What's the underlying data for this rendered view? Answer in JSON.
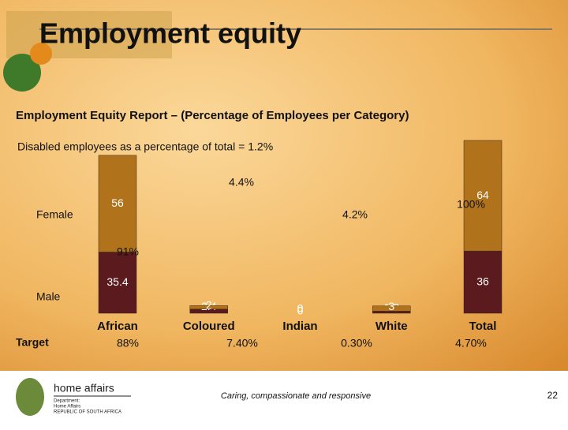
{
  "header": {
    "title": "Employment equity"
  },
  "chart_data": {
    "type": "stacked-bar",
    "title": "Employment Equity Report – (Percentage of Employees per Category)",
    "subtitle": "Disabled employees as a percentage of total = 1.2%",
    "categories": [
      "African",
      "Coloured",
      "Indian",
      "White",
      "Total"
    ],
    "series": [
      {
        "name": "Male",
        "color": "#5a1a1e",
        "values": [
          35.4,
          2.4,
          0,
          1.2,
          36
        ]
      },
      {
        "name": "Female",
        "color": "#b0731c",
        "values": [
          56,
          2,
          0,
          3,
          64
        ]
      }
    ],
    "ylim": [
      0,
      100
    ],
    "annotations": [
      "4.4%",
      "4.2%",
      "100%",
      "91%"
    ],
    "target": {
      "label": "Target",
      "values": [
        "88%",
        "7.40%",
        "0.30%",
        "4.70%"
      ]
    }
  },
  "footer": {
    "logo_title": "home affairs",
    "logo_line1": "Department:",
    "logo_line2": "Home Affairs",
    "logo_line3": "REPUBLIC OF SOUTH AFRICA",
    "tagline": "Caring, compassionate and responsive",
    "page": "22"
  }
}
